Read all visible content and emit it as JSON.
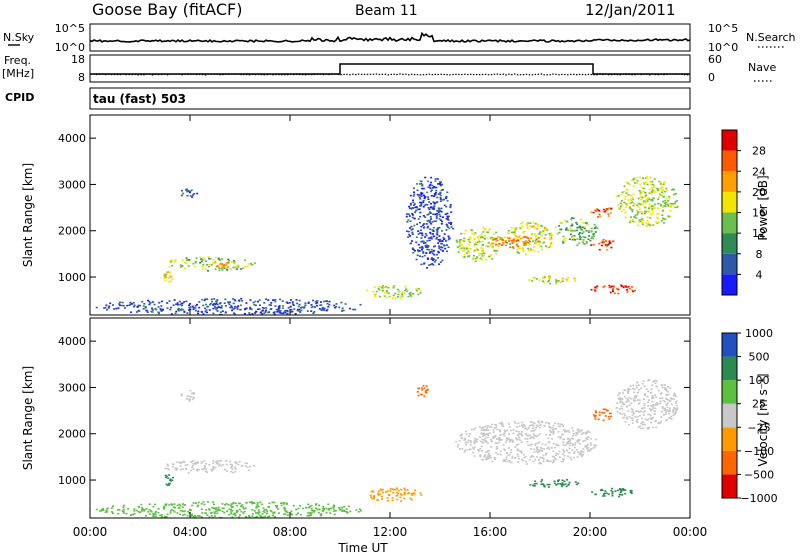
{
  "header": {
    "station": "Goose Bay (fitACF)",
    "beam": "Beam 11",
    "date": "12/Jan/2011"
  },
  "noise_panel": {
    "left_label": "N.Sky",
    "right_label": "N.Search",
    "left_ticks": [
      "10^5",
      "10^0"
    ],
    "right_ticks": [
      "10^5",
      "10^0"
    ]
  },
  "freq_panel": {
    "left_label_line1": "Freq.",
    "left_label_line2": "[MHz]",
    "right_label": "Nave",
    "left_ticks": [
      "18",
      "8"
    ],
    "right_ticks": [
      "60",
      "0"
    ]
  },
  "cpid": {
    "label": "CPID",
    "value": "tau (fast) 503"
  },
  "x_axis": {
    "label": "Time UT",
    "ticks": [
      "00:00",
      "04:00",
      "08:00",
      "12:00",
      "16:00",
      "20:00",
      "00:00"
    ]
  },
  "y_axis": {
    "label": "Slant Range [km]",
    "ticks": [
      "1000",
      "2000",
      "3000",
      "4000"
    ]
  },
  "power_colorbar": {
    "label": "Power [dB]",
    "ticks": [
      "4",
      "8",
      "12",
      "16",
      "20",
      "24",
      "28"
    ],
    "colors": [
      "#1a1aff",
      "#2e58a8",
      "#2e8b57",
      "#6bbf4e",
      "#f2e500",
      "#ffa000",
      "#ff5a00",
      "#e00000"
    ]
  },
  "velocity_colorbar": {
    "label": "Velocity [m s⁻¹]",
    "ticks": [
      "1000",
      "500",
      "100",
      "25",
      "−25",
      "−100",
      "−500",
      "−1000"
    ],
    "colors": [
      "#2050c0",
      "#2a8a50",
      "#5cc040",
      "#c8c8c8",
      "#ff9a00",
      "#ff6600",
      "#e00000"
    ]
  },
  "chart_data": [
    {
      "type": "heatmap",
      "panel": "power",
      "x_unit": "hours UT",
      "y_unit": "km",
      "xlim": [
        0,
        24
      ],
      "ylim": [
        180,
        4500
      ],
      "colorbar_range": [
        0,
        30
      ],
      "regions": [
        {
          "t0": 3.6,
          "t1": 4.3,
          "r0": 2700,
          "r1": 2950,
          "value": 6
        },
        {
          "t0": 2.9,
          "t1": 6.6,
          "r0": 1150,
          "r1": 1450,
          "value": 15
        },
        {
          "t0": 4.8,
          "t1": 5.6,
          "r0": 1200,
          "r1": 1350,
          "value": 22
        },
        {
          "t0": 2.9,
          "t1": 3.3,
          "r0": 900,
          "r1": 1150,
          "value": 18
        },
        {
          "t0": 0.2,
          "t1": 11.0,
          "r0": 200,
          "r1": 550,
          "value": 5
        },
        {
          "t0": 11.0,
          "t1": 13.3,
          "r0": 550,
          "r1": 850,
          "value": 16
        },
        {
          "t0": 14.6,
          "t1": 16.5,
          "r0": 1350,
          "r1": 2100,
          "value": 16
        },
        {
          "t0": 16.5,
          "t1": 18.5,
          "r0": 1500,
          "r1": 2200,
          "value": 17
        },
        {
          "t0": 18.5,
          "t1": 20.3,
          "r0": 1700,
          "r1": 2300,
          "value": 13
        },
        {
          "t0": 16.0,
          "t1": 18.0,
          "r0": 1650,
          "r1": 1900,
          "value": 24
        },
        {
          "t0": 17.5,
          "t1": 19.5,
          "r0": 850,
          "r1": 1050,
          "value": 17
        },
        {
          "t0": 20.0,
          "t1": 21.0,
          "r0": 1600,
          "r1": 1850,
          "value": 27
        },
        {
          "t0": 20.0,
          "t1": 20.9,
          "r0": 2300,
          "r1": 2550,
          "value": 26
        },
        {
          "t0": 20.0,
          "t1": 21.8,
          "r0": 650,
          "r1": 850,
          "value": 28
        },
        {
          "t0": 21.0,
          "t1": 23.5,
          "r0": 2100,
          "r1": 3200,
          "value": 16
        },
        {
          "t0": 12.6,
          "t1": 14.5,
          "r0": 1200,
          "r1": 3200,
          "value": 5
        }
      ]
    },
    {
      "type": "heatmap",
      "panel": "velocity",
      "x_unit": "hours UT",
      "y_unit": "km",
      "xlim": [
        0,
        24
      ],
      "ylim": [
        180,
        4500
      ],
      "colorbar_range": [
        -1000,
        1000
      ],
      "regions": [
        {
          "t0": 3.6,
          "t1": 4.3,
          "r0": 2700,
          "r1": 2950,
          "value": 0
        },
        {
          "t0": 2.9,
          "t1": 6.6,
          "r0": 1150,
          "r1": 1450,
          "value": 0
        },
        {
          "t0": 2.9,
          "t1": 3.3,
          "r0": 900,
          "r1": 1150,
          "value": 150
        },
        {
          "t0": 0.2,
          "t1": 11.0,
          "r0": 200,
          "r1": 550,
          "value": 60
        },
        {
          "t0": 11.0,
          "t1": 13.3,
          "r0": 550,
          "r1": 850,
          "value": -60
        },
        {
          "t0": 14.6,
          "t1": 20.3,
          "r0": 1350,
          "r1": 2300,
          "value": 0
        },
        {
          "t0": 17.5,
          "t1": 19.5,
          "r0": 850,
          "r1": 1050,
          "value": 150
        },
        {
          "t0": 20.0,
          "t1": 20.9,
          "r0": 2300,
          "r1": 2550,
          "value": -200
        },
        {
          "t0": 20.0,
          "t1": 21.8,
          "r0": 650,
          "r1": 850,
          "value": 150
        },
        {
          "t0": 21.0,
          "t1": 23.5,
          "r0": 2100,
          "r1": 3200,
          "value": 0
        },
        {
          "t0": 13.0,
          "t1": 13.5,
          "r0": 2800,
          "r1": 3100,
          "value": -300
        }
      ]
    }
  ]
}
